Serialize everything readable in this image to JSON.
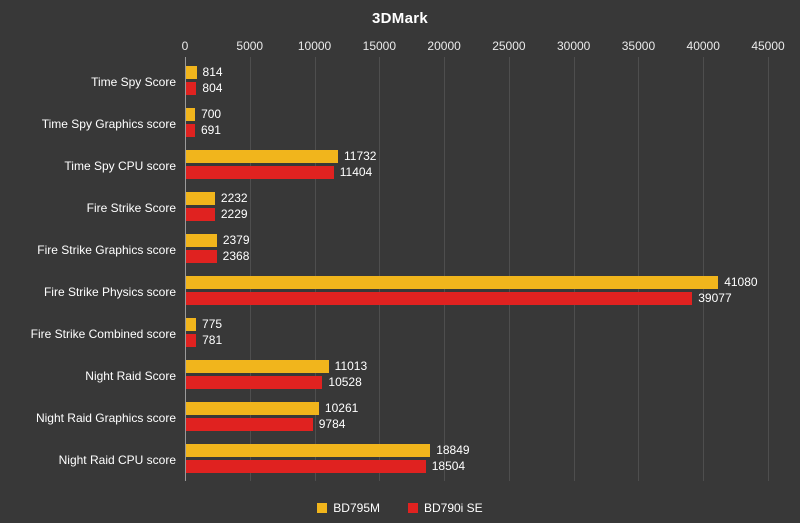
{
  "title": "3DMark",
  "chart_data": {
    "type": "bar",
    "orientation": "horizontal",
    "title": "3DMark",
    "categories": [
      "Time Spy Score",
      "Time Spy Graphics score",
      "Time Spy CPU score",
      "Fire Strike Score",
      "Fire Strike Graphics score",
      "Fire Strike Physics score",
      "Fire Strike Combined score",
      "Night Raid Score",
      "Night Raid Graphics score",
      "Night Raid CPU score"
    ],
    "series": [
      {
        "name": "BD795M",
        "color": "#f1b51c",
        "values": [
          814,
          700,
          11732,
          2232,
          2379,
          41080,
          775,
          11013,
          10261,
          18849
        ]
      },
      {
        "name": "BD790i SE",
        "color": "#e02220",
        "values": [
          804,
          691,
          11404,
          2229,
          2368,
          39077,
          781,
          10528,
          9784,
          18504
        ]
      }
    ],
    "x_ticks": [
      0,
      5000,
      10000,
      15000,
      20000,
      25000,
      30000,
      35000,
      40000,
      45000
    ],
    "xlim": [
      0,
      45000
    ],
    "axis_position": "top",
    "grid": true,
    "legend_position": "bottom"
  },
  "colors": {
    "background": "#383838",
    "text": "#ffffff",
    "gridline": "#4e4e4e",
    "axis_line": "#9a9a9a"
  }
}
